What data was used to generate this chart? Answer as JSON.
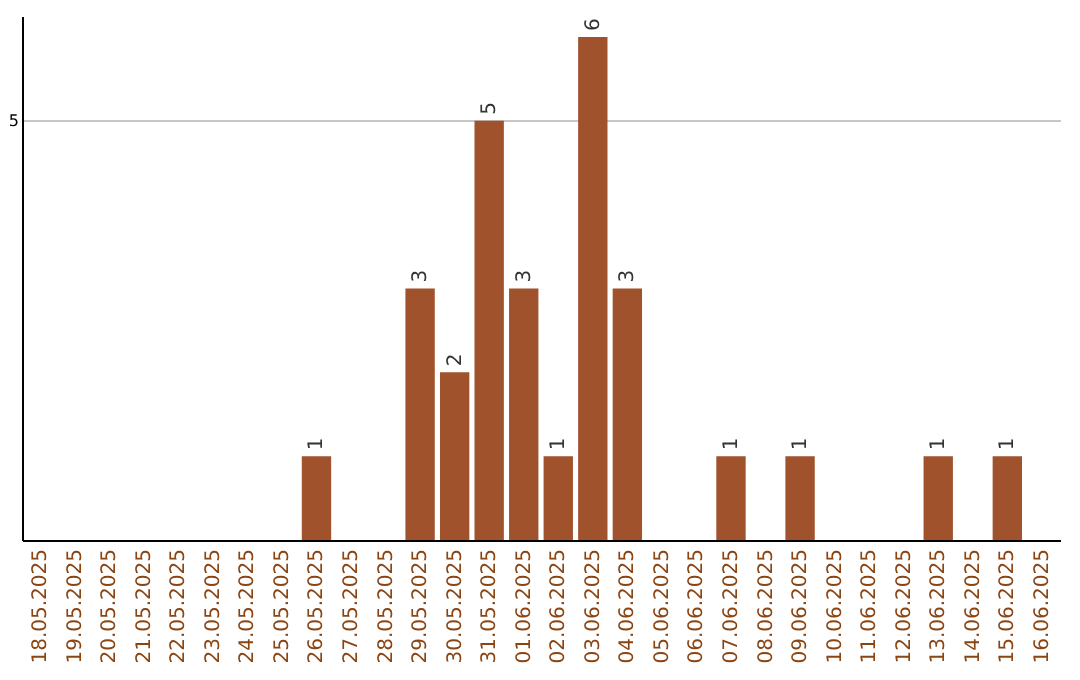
{
  "chart_data": {
    "type": "bar",
    "categories": [
      "18.05.2025",
      "19.05.2025",
      "20.05.2025",
      "21.05.2025",
      "22.05.2025",
      "23.05.2025",
      "24.05.2025",
      "25.05.2025",
      "26.05.2025",
      "27.05.2025",
      "28.05.2025",
      "29.05.2025",
      "30.05.2025",
      "31.05.2025",
      "01.06.2025",
      "02.06.2025",
      "03.06.2025",
      "04.06.2025",
      "05.06.2025",
      "06.06.2025",
      "07.06.2025",
      "08.06.2025",
      "09.06.2025",
      "10.06.2025",
      "11.06.2025",
      "12.06.2025",
      "13.06.2025",
      "14.06.2025",
      "15.06.2025",
      "16.06.2025"
    ],
    "values": [
      0,
      0,
      0,
      0,
      0,
      0,
      0,
      0,
      1,
      0,
      0,
      3,
      2,
      5,
      3,
      1,
      6,
      3,
      0,
      0,
      1,
      0,
      1,
      0,
      0,
      0,
      1,
      0,
      1,
      0
    ],
    "value_labels": [
      null,
      null,
      null,
      null,
      null,
      null,
      null,
      null,
      "1",
      null,
      null,
      "3",
      "2",
      "5",
      "3",
      "1",
      "6",
      "3",
      null,
      null,
      "1",
      null,
      "1",
      null,
      null,
      null,
      "1",
      null,
      "1",
      null
    ],
    "color": "#a0522d",
    "ylim": [
      0,
      6.25
    ],
    "yticks": [
      5
    ],
    "grid": "y"
  }
}
